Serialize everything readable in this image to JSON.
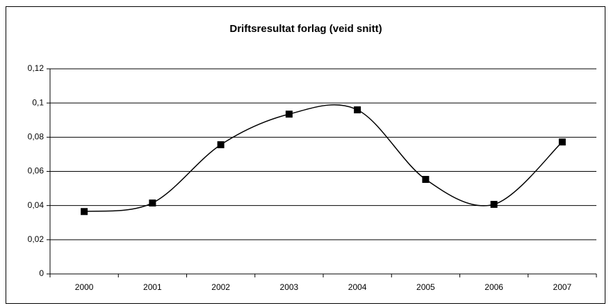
{
  "chart_data": {
    "type": "line",
    "title": "Driftsresultat forlag (veid snitt)",
    "categories": [
      "2000",
      "2001",
      "2002",
      "2003",
      "2004",
      "2005",
      "2006",
      "2007"
    ],
    "series": [
      {
        "name": "Driftsresultat",
        "color": "#000000",
        "values": [
          0.0365,
          0.0415,
          0.0756,
          0.0935,
          0.096,
          0.0553,
          0.0407,
          0.0772
        ]
      }
    ],
    "smooth": true,
    "ylim": [
      0,
      0.12
    ],
    "yticks": [
      0,
      {
        "value": 0.02,
        "label": "0,02"
      },
      {
        "value": 0.04,
        "label": "0,04"
      },
      {
        "value": 0.06,
        "label": "0,06"
      },
      {
        "value": 0.08,
        "label": "0,08"
      },
      {
        "value": 0.1,
        "label": "0,1"
      },
      {
        "value": 0.12,
        "label": "0,12"
      }
    ],
    "grid": true
  }
}
